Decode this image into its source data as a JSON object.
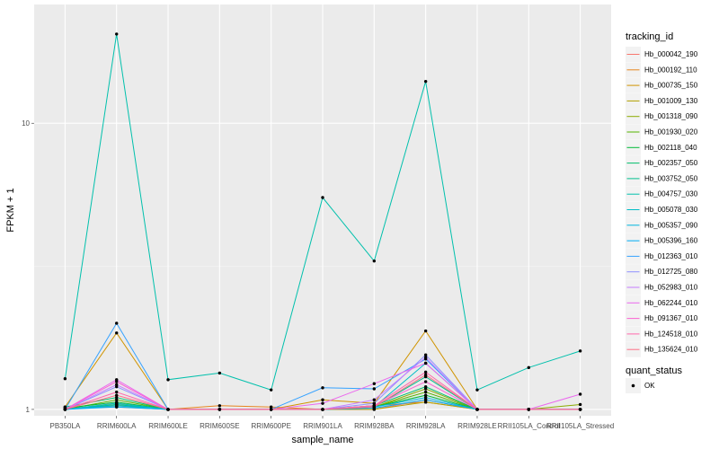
{
  "chart_data": {
    "type": "line",
    "xlabel": "sample_name",
    "ylabel": "FPKM + 1",
    "y_scale": "log10",
    "ylim": [
      0.95,
      26
    ],
    "y_ticks": [
      {
        "value": 1,
        "label": "1"
      },
      {
        "value": 10,
        "label": "10"
      }
    ],
    "categories": [
      "PB350LA",
      "RRIM600LA",
      "RRIM600LE",
      "RRIM600SE",
      "RRIM600PE",
      "RRIM901LA",
      "RRIM928BA",
      "RRIM928LA",
      "RRIM928LE",
      "RRII105LA_Control",
      "RRII105LA_Stressed"
    ],
    "legend": {
      "title": "tracking_id",
      "position": "right"
    },
    "point_legend": {
      "title": "quant_status",
      "label": "OK"
    },
    "grid": true,
    "series": [
      {
        "name": "Hb_000042_190",
        "color": "#F8766D",
        "values": [
          1.0,
          1.05,
          1.0,
          1.0,
          1.0,
          1.0,
          1.0,
          1.08,
          1.0,
          1.0,
          1.0
        ]
      },
      {
        "name": "Hb_000192_110",
        "color": "#E7851E",
        "values": [
          1.01,
          1.02,
          1.0,
          1.03,
          1.02,
          1.0,
          1.03,
          1.06,
          1.0,
          1.0,
          1.0
        ]
      },
      {
        "name": "Hb_000735_150",
        "color": "#D09400",
        "values": [
          1.02,
          1.85,
          1.0,
          1.0,
          1.0,
          1.08,
          1.05,
          1.88,
          1.0,
          1.0,
          1.0
        ]
      },
      {
        "name": "Hb_001009_130",
        "color": "#B2A100",
        "values": [
          1.0,
          1.03,
          1.0,
          1.0,
          1.0,
          1.0,
          1.0,
          1.06,
          1.0,
          1.0,
          1.0
        ]
      },
      {
        "name": "Hb_001318_090",
        "color": "#8BAB00",
        "values": [
          1.0,
          1.04,
          1.0,
          1.0,
          1.0,
          1.0,
          1.02,
          1.18,
          1.0,
          1.0,
          1.04
        ]
      },
      {
        "name": "Hb_001930_020",
        "color": "#55B400",
        "values": [
          1.0,
          1.08,
          1.0,
          1.0,
          1.0,
          1.0,
          1.02,
          1.15,
          1.0,
          1.0,
          1.0
        ]
      },
      {
        "name": "Hb_002118_040",
        "color": "#00BA38",
        "values": [
          1.01,
          1.06,
          1.0,
          1.0,
          1.0,
          1.0,
          1.02,
          1.12,
          1.0,
          1.0,
          1.0
        ]
      },
      {
        "name": "Hb_002357_050",
        "color": "#00BE6C",
        "values": [
          1.02,
          1.1,
          1.0,
          1.0,
          1.0,
          1.0,
          1.03,
          1.2,
          1.0,
          1.0,
          1.0
        ]
      },
      {
        "name": "Hb_003752_050",
        "color": "#00C08E",
        "values": [
          1.0,
          1.04,
          1.0,
          1.0,
          1.0,
          1.0,
          1.02,
          1.3,
          1.0,
          1.0,
          1.0
        ]
      },
      {
        "name": "Hb_004757_030",
        "color": "#00C0AC",
        "values": [
          1.28,
          20.5,
          1.27,
          1.34,
          1.17,
          5.5,
          3.3,
          14.0,
          1.17,
          1.4,
          1.6
        ]
      },
      {
        "name": "Hb_005078_030",
        "color": "#00BDC7",
        "values": [
          1.0,
          1.05,
          1.0,
          1.0,
          1.0,
          1.0,
          1.02,
          1.45,
          1.0,
          1.0,
          1.0
        ]
      },
      {
        "name": "Hb_005357_090",
        "color": "#00B7DF",
        "values": [
          1.0,
          1.03,
          1.0,
          1.0,
          1.0,
          1.0,
          1.02,
          1.1,
          1.0,
          1.0,
          1.0
        ]
      },
      {
        "name": "Hb_005396_160",
        "color": "#00ADF4",
        "values": [
          1.0,
          1.02,
          1.0,
          1.0,
          1.0,
          1.0,
          1.01,
          1.08,
          1.0,
          1.0,
          1.0
        ]
      },
      {
        "name": "Hb_012363_010",
        "color": "#35A2FF",
        "values": [
          1.0,
          2.0,
          1.0,
          1.0,
          1.0,
          1.19,
          1.18,
          1.5,
          1.0,
          1.0,
          1.0
        ]
      },
      {
        "name": "Hb_012725_080",
        "color": "#8F91FF",
        "values": [
          1.0,
          1.2,
          1.0,
          1.0,
          1.0,
          1.0,
          1.05,
          1.55,
          1.0,
          1.0,
          1.0
        ]
      },
      {
        "name": "Hb_052983_010",
        "color": "#C77CFF",
        "values": [
          1.0,
          1.22,
          1.0,
          1.0,
          1.0,
          1.0,
          1.08,
          1.52,
          1.0,
          1.0,
          1.0
        ]
      },
      {
        "name": "Hb_062244_010",
        "color": "#EB68EE",
        "values": [
          1.0,
          1.27,
          1.0,
          1.0,
          1.0,
          1.05,
          1.23,
          1.45,
          1.0,
          1.0,
          1.13
        ]
      },
      {
        "name": "Hb_091367_010",
        "color": "#FA62D2",
        "values": [
          1.0,
          1.25,
          1.0,
          1.0,
          1.0,
          1.0,
          1.03,
          1.25,
          1.0,
          1.0,
          1.0
        ]
      },
      {
        "name": "Hb_124518_010",
        "color": "#FF67AD",
        "values": [
          1.0,
          1.15,
          1.0,
          1.0,
          1.0,
          1.0,
          1.03,
          1.35,
          1.0,
          1.0,
          1.0
        ]
      },
      {
        "name": "Hb_135624_010",
        "color": "#FD6F86",
        "values": [
          1.0,
          1.12,
          1.0,
          1.0,
          1.0,
          1.0,
          1.02,
          1.32,
          1.0,
          1.0,
          1.0
        ]
      }
    ]
  }
}
